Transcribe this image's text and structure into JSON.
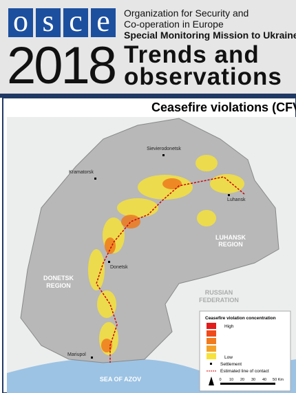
{
  "header": {
    "logo": [
      "o",
      "s",
      "c",
      "e"
    ],
    "org_line1": "Organization for Security and",
    "org_line2": "Co-operation in Europe",
    "mission": "Special Monitoring Mission to Ukraine",
    "year": "2018",
    "title_line1": "Trends and",
    "title_line2": "observations"
  },
  "map": {
    "title": "Ceasefire violations (CFVs)",
    "places": [
      "Sievierodonetsk",
      "Kramatorsk",
      "Luhansk",
      "Donetsk",
      "Mariupol"
    ],
    "regions": [
      "LUHANSK",
      "REGION",
      "DONETSK",
      "REGION",
      "RUSSIAN",
      "FEDERATION",
      "SEA OF AZOV"
    ],
    "legend": {
      "title": "Ceasefire violation concentration",
      "high": "High",
      "low": "Low",
      "settlement": "Settlement",
      "line": "Estimated line of contact",
      "scale": [
        "0",
        "10",
        "20",
        "30",
        "40",
        "50 Km"
      ]
    }
  }
}
